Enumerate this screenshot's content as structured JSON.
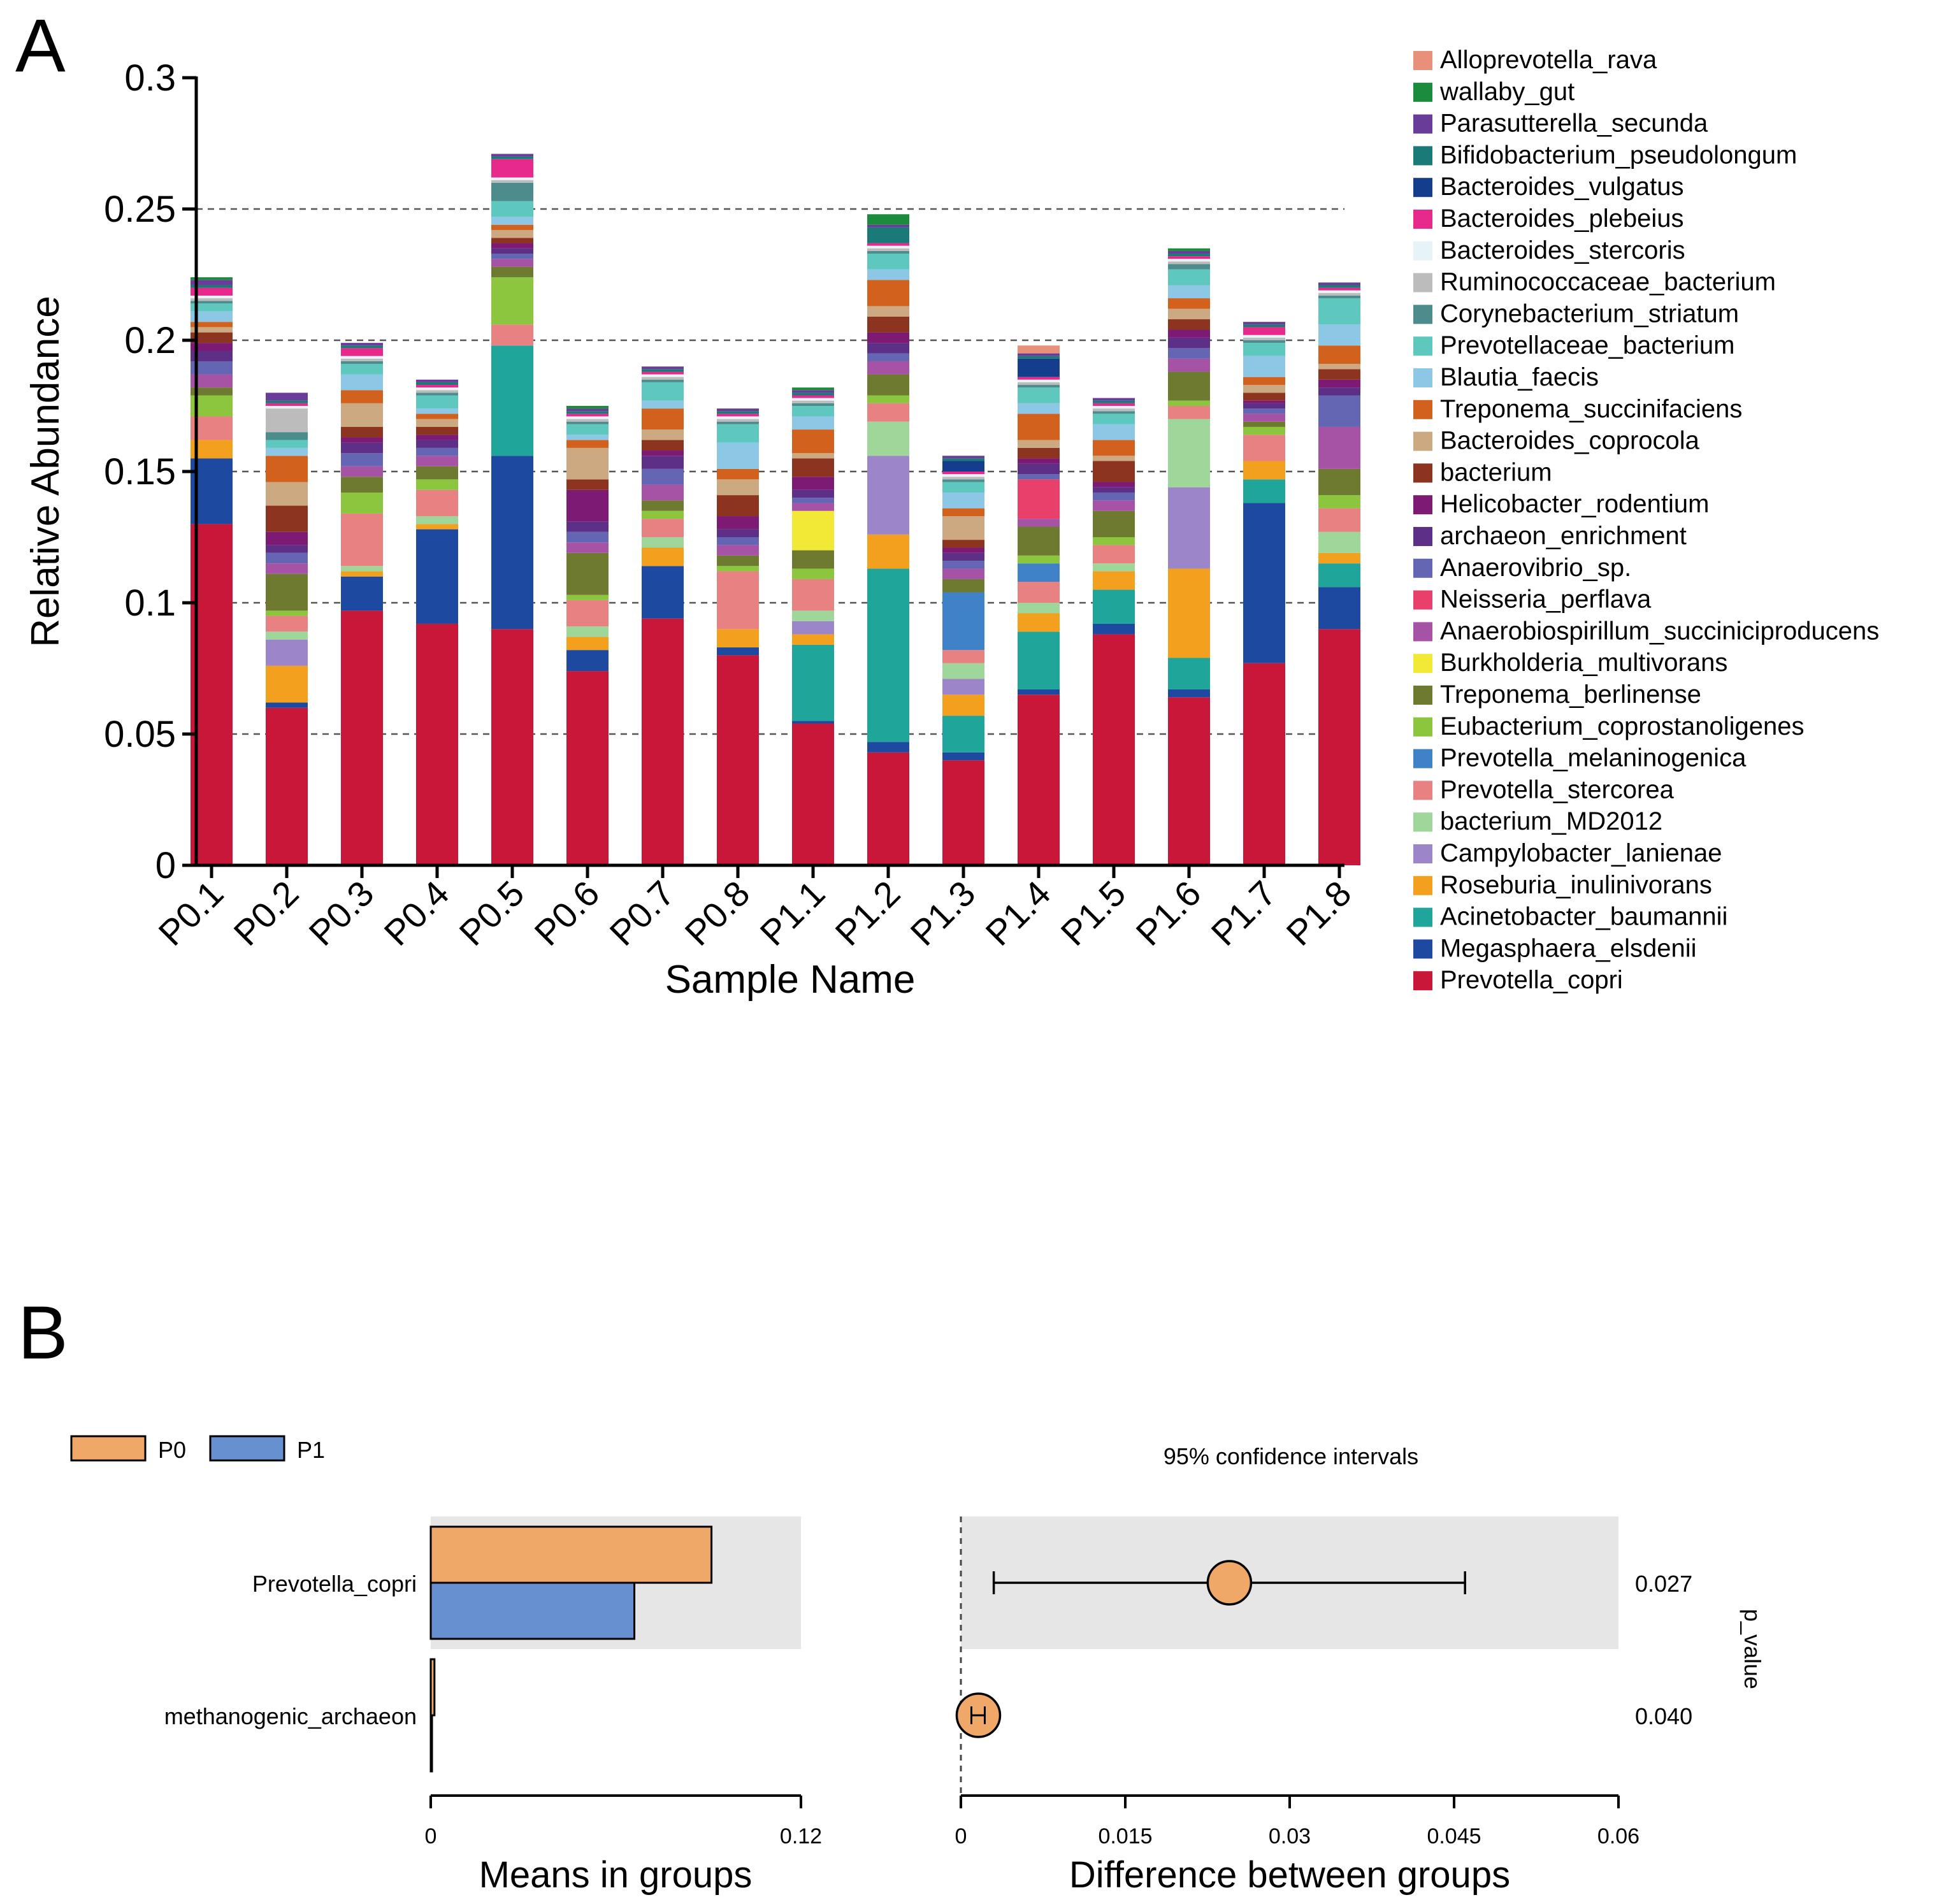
{
  "panels": {
    "a_letter": "A",
    "b_letter": "B"
  },
  "chart_data": [
    {
      "type": "bar",
      "stacked": true,
      "panel": "A",
      "xlabel": "Sample Name",
      "ylabel": "Relative Abundance",
      "ylim": [
        0,
        0.3
      ],
      "yticks": [
        0,
        0.05,
        0.1,
        0.15,
        0.2,
        0.25,
        0.3
      ],
      "ytick_labels": [
        "0",
        "0.05",
        "0.1",
        "0.15",
        "0.2",
        "0.25",
        "0.3"
      ],
      "grid": "horizontal dashed",
      "legend_position": "right",
      "categories": [
        "P0.1",
        "P0.2",
        "P0.3",
        "P0.4",
        "P0.5",
        "P0.6",
        "P0.7",
        "P0.8",
        "P1.1",
        "P1.2",
        "P1.3",
        "P1.4",
        "P1.5",
        "P1.6",
        "P1.7",
        "P1.8"
      ],
      "series": [
        {
          "name": "Prevotella_copri",
          "color": "#c9173a",
          "values": [
            0.13,
            0.06,
            0.097,
            0.092,
            0.09,
            0.074,
            0.094,
            0.08,
            0.054,
            0.043,
            0.04,
            0.065,
            0.088,
            0.064,
            0.077,
            0.09
          ]
        },
        {
          "name": "Megasphaera_elsdenii",
          "color": "#1d4aa0",
          "values": [
            0.025,
            0.002,
            0.013,
            0.036,
            0.066,
            0.008,
            0.02,
            0.003,
            0.001,
            0.004,
            0.003,
            0.002,
            0.004,
            0.003,
            0.061,
            0.016
          ]
        },
        {
          "name": "Acinetobacter_baumannii",
          "color": "#1fa59a",
          "values": [
            0.0,
            0.0,
            0.0,
            0.0,
            0.042,
            0.0,
            0.0,
            0.0,
            0.029,
            0.066,
            0.014,
            0.022,
            0.013,
            0.012,
            0.009,
            0.009
          ]
        },
        {
          "name": "Roseburia_inulinivorans",
          "color": "#f3a01e",
          "values": [
            0.007,
            0.014,
            0.002,
            0.002,
            0.0,
            0.005,
            0.007,
            0.007,
            0.004,
            0.013,
            0.008,
            0.007,
            0.007,
            0.034,
            0.007,
            0.004
          ]
        },
        {
          "name": "Campylobacter_lanienae",
          "color": "#9c85c8",
          "values": [
            0.0,
            0.01,
            0.0,
            0.0,
            0.0,
            0.0,
            0.0,
            0.0,
            0.005,
            0.03,
            0.006,
            0.0,
            0.0,
            0.031,
            0.0,
            0.0
          ]
        },
        {
          "name": "bacterium_MD2012",
          "color": "#9fd69a",
          "values": [
            0.0,
            0.003,
            0.002,
            0.003,
            0.0,
            0.004,
            0.004,
            0.0,
            0.004,
            0.013,
            0.006,
            0.004,
            0.003,
            0.026,
            0.0,
            0.008
          ]
        },
        {
          "name": "Prevotella_stercorea",
          "color": "#e88181",
          "values": [
            0.009,
            0.006,
            0.02,
            0.01,
            0.008,
            0.01,
            0.007,
            0.022,
            0.012,
            0.007,
            0.005,
            0.008,
            0.007,
            0.005,
            0.01,
            0.009
          ]
        },
        {
          "name": "Prevotella_melaninogenica",
          "color": "#3f82c8",
          "values": [
            0.0,
            0.0,
            0.0,
            0.0,
            0.0,
            0.0,
            0.0,
            0.0,
            0.0,
            0.0,
            0.022,
            0.007,
            0.0,
            0.0,
            0.0,
            0.0
          ]
        },
        {
          "name": "Eubacterium_coprostanoligenes",
          "color": "#8cc63f",
          "values": [
            0.008,
            0.002,
            0.008,
            0.004,
            0.018,
            0.002,
            0.003,
            0.002,
            0.004,
            0.003,
            0.0,
            0.003,
            0.003,
            0.002,
            0.003,
            0.005
          ]
        },
        {
          "name": "Treponema_berlinense",
          "color": "#6d7a30",
          "values": [
            0.003,
            0.014,
            0.006,
            0.005,
            0.004,
            0.016,
            0.004,
            0.004,
            0.007,
            0.008,
            0.005,
            0.011,
            0.01,
            0.011,
            0.002,
            0.01
          ]
        },
        {
          "name": "Burkholderia_multivorans",
          "color": "#f2e936",
          "values": [
            0.0,
            0.0,
            0.0,
            0.0,
            0.0,
            0.0,
            0.0,
            0.0,
            0.015,
            0.0,
            0.0,
            0.0,
            0.0,
            0.0,
            0.0,
            0.0
          ]
        },
        {
          "name": "Anaerobiospirillum_succiniciproducens",
          "color": "#a653a6",
          "values": [
            0.005,
            0.004,
            0.004,
            0.004,
            0.003,
            0.004,
            0.006,
            0.004,
            0.003,
            0.005,
            0.004,
            0.003,
            0.004,
            0.005,
            0.003,
            0.016
          ]
        },
        {
          "name": "Neisseria_perflava",
          "color": "#e8406a",
          "values": [
            0.0,
            0.0,
            0.0,
            0.0,
            0.0,
            0.0,
            0.0,
            0.0,
            0.0,
            0.0,
            0.0,
            0.015,
            0.0,
            0.0,
            0.0,
            0.0
          ]
        },
        {
          "name": "Anaerovibrio_sp.",
          "color": "#6465b3",
          "values": [
            0.005,
            0.004,
            0.005,
            0.003,
            0.002,
            0.004,
            0.006,
            0.003,
            0.002,
            0.003,
            0.003,
            0.002,
            0.003,
            0.004,
            0.002,
            0.012
          ]
        },
        {
          "name": "archaeon_enrichment",
          "color": "#5e2f86",
          "values": [
            0.004,
            0.003,
            0.004,
            0.003,
            0.002,
            0.004,
            0.005,
            0.003,
            0.003,
            0.004,
            0.003,
            0.004,
            0.002,
            0.004,
            0.002,
            0.003
          ]
        },
        {
          "name": "Helicobacter_rodentium",
          "color": "#7d1a74",
          "values": [
            0.003,
            0.005,
            0.002,
            0.002,
            0.002,
            0.012,
            0.002,
            0.005,
            0.005,
            0.004,
            0.002,
            0.002,
            0.002,
            0.003,
            0.001,
            0.003
          ]
        },
        {
          "name": "bacterium",
          "color": "#8c3420",
          "values": [
            0.004,
            0.01,
            0.004,
            0.003,
            0.002,
            0.004,
            0.004,
            0.008,
            0.007,
            0.006,
            0.003,
            0.004,
            0.008,
            0.004,
            0.003,
            0.004
          ]
        },
        {
          "name": "Bacteroides_coprocola",
          "color": "#cda982",
          "values": [
            0.002,
            0.009,
            0.009,
            0.003,
            0.003,
            0.012,
            0.004,
            0.006,
            0.002,
            0.004,
            0.009,
            0.003,
            0.002,
            0.004,
            0.003,
            0.002
          ]
        },
        {
          "name": "Treponema_succinifaciens",
          "color": "#d2611e",
          "values": [
            0.002,
            0.01,
            0.005,
            0.002,
            0.002,
            0.003,
            0.008,
            0.004,
            0.009,
            0.01,
            0.003,
            0.01,
            0.006,
            0.004,
            0.003,
            0.007
          ]
        },
        {
          "name": "Blautia_faecis",
          "color": "#8cc8e6",
          "values": [
            0.004,
            0.003,
            0.006,
            0.002,
            0.003,
            0.002,
            0.003,
            0.01,
            0.005,
            0.004,
            0.006,
            0.004,
            0.006,
            0.005,
            0.008,
            0.008
          ]
        },
        {
          "name": "Prevotellaceae_bacterium",
          "color": "#5ec8be",
          "values": [
            0.003,
            0.003,
            0.004,
            0.005,
            0.006,
            0.004,
            0.007,
            0.007,
            0.004,
            0.006,
            0.004,
            0.006,
            0.004,
            0.006,
            0.005,
            0.01
          ]
        },
        {
          "name": "Corynebacterium_striatum",
          "color": "#4d8c8c",
          "values": [
            0.001,
            0.003,
            0.001,
            0.001,
            0.007,
            0.001,
            0.001,
            0.001,
            0.001,
            0.001,
            0.001,
            0.001,
            0.001,
            0.002,
            0.001,
            0.001
          ]
        },
        {
          "name": "Ruminococcaceae_bacterium",
          "color": "#bcbcbc",
          "values": [
            0.001,
            0.009,
            0.001,
            0.001,
            0.001,
            0.001,
            0.001,
            0.001,
            0.001,
            0.001,
            0.001,
            0.001,
            0.001,
            0.001,
            0.001,
            0.001
          ]
        },
        {
          "name": "Bacteroides_stercoris",
          "color": "#e6f4f7",
          "values": [
            0.001,
            0.001,
            0.001,
            0.001,
            0.001,
            0.001,
            0.001,
            0.001,
            0.001,
            0.001,
            0.001,
            0.001,
            0.001,
            0.001,
            0.001,
            0.001
          ]
        },
        {
          "name": "Bacteroides_plebeius",
          "color": "#e8298c",
          "values": [
            0.003,
            0.001,
            0.003,
            0.001,
            0.007,
            0.001,
            0.001,
            0.001,
            0.001,
            0.001,
            0.001,
            0.001,
            0.001,
            0.001,
            0.003,
            0.001
          ]
        },
        {
          "name": "Bacteroides_vulgatus",
          "color": "#143e8c",
          "values": [
            0.0,
            0.0,
            0.0,
            0.0,
            0.0,
            0.0,
            0.0,
            0.0,
            0.0,
            0.0,
            0.004,
            0.007,
            0.0,
            0.0,
            0.0,
            0.0
          ]
        },
        {
          "name": "Bifidobacterium_pseudolongum",
          "color": "#1a7a78",
          "values": [
            0.001,
            0.001,
            0.001,
            0.001,
            0.001,
            0.001,
            0.001,
            0.001,
            0.001,
            0.006,
            0.001,
            0.001,
            0.001,
            0.001,
            0.001,
            0.001
          ]
        },
        {
          "name": "Parasutterella_secunda",
          "color": "#6a3c99",
          "values": [
            0.002,
            0.003,
            0.001,
            0.001,
            0.001,
            0.001,
            0.001,
            0.001,
            0.001,
            0.001,
            0.001,
            0.001,
            0.001,
            0.001,
            0.001,
            0.001
          ]
        },
        {
          "name": "wallaby_gut",
          "color": "#1a8c3c",
          "values": [
            0.001,
            0.0,
            0.0,
            0.0,
            0.0,
            0.001,
            0.0,
            0.0,
            0.001,
            0.004,
            0.0,
            0.0,
            0.0,
            0.001,
            0.0,
            0.0
          ]
        },
        {
          "name": "Alloprevotella_rava",
          "color": "#e8907a",
          "values": [
            0.0,
            0.0,
            0.0,
            0.0,
            0.0,
            0.0,
            0.0,
            0.0,
            0.0,
            0.0,
            0.0,
            0.003,
            0.0,
            0.0,
            0.0,
            0.0
          ]
        }
      ]
    },
    {
      "type": "bar",
      "orientation": "horizontal",
      "panel": "B-left",
      "xlabel": "Means in groups",
      "xlim": [
        0,
        0.12
      ],
      "xtick_labels": [
        "0",
        "0.12"
      ],
      "categories": [
        "Prevotella_copri",
        "methanogenic_archaeon"
      ],
      "series": [
        {
          "name": "P0",
          "color": "#f0a868",
          "values": [
            0.091,
            0.0012
          ]
        },
        {
          "name": "P1",
          "color": "#6690d0",
          "values": [
            0.066,
            0.0003
          ]
        }
      ],
      "legend": [
        "P0",
        "P1"
      ],
      "legend_position": "top-left"
    },
    {
      "type": "scatter",
      "panel": "B-right",
      "title": "95% confidence intervals",
      "xlabel": "Difference between groups",
      "xlim": [
        0,
        0.06
      ],
      "xtick_labels": [
        "0",
        "0.015",
        "0.03",
        "0.045",
        "0.06"
      ],
      "categories": [
        "Prevotella_copri",
        "methanogenic_archaeon"
      ],
      "points": [
        {
          "label": "Prevotella_copri",
          "x": 0.0245,
          "ci": [
            0.003,
            0.046
          ],
          "p_value": "0.027"
        },
        {
          "label": "methanogenic_archaeon",
          "x": 0.0009,
          "ci": [
            0.0002,
            0.0016
          ],
          "p_value": "0.040"
        }
      ],
      "point_color": "#f0a868",
      "p_value_label": "p_value"
    }
  ]
}
